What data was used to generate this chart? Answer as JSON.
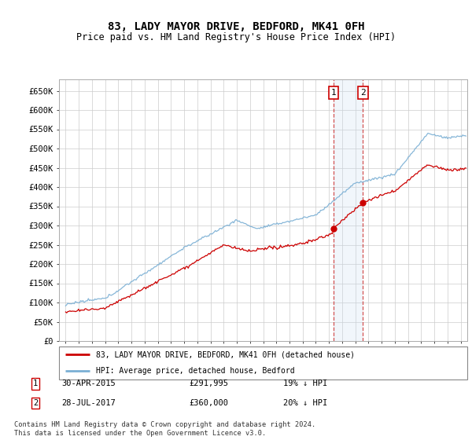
{
  "title": "83, LADY MAYOR DRIVE, BEDFORD, MK41 0FH",
  "subtitle": "Price paid vs. HM Land Registry's House Price Index (HPI)",
  "ylabel_ticks": [
    "£0",
    "£50K",
    "£100K",
    "£150K",
    "£200K",
    "£250K",
    "£300K",
    "£350K",
    "£400K",
    "£450K",
    "£500K",
    "£550K",
    "£600K",
    "£650K"
  ],
  "yticks": [
    0,
    50000,
    100000,
    150000,
    200000,
    250000,
    300000,
    350000,
    400000,
    450000,
    500000,
    550000,
    600000,
    650000
  ],
  "ylim": [
    0,
    680000
  ],
  "xlim_start": 1994.5,
  "xlim_end": 2025.5,
  "sale1_year": 2015.33,
  "sale1_price": 291995,
  "sale1_label": "1",
  "sale1_date": "30-APR-2015",
  "sale1_text": "£291,995",
  "sale1_hpi": "19% ↓ HPI",
  "sale2_year": 2017.58,
  "sale2_price": 360000,
  "sale2_label": "2",
  "sale2_date": "28-JUL-2017",
  "sale2_text": "£360,000",
  "sale2_hpi": "20% ↓ HPI",
  "legend_line1": "83, LADY MAYOR DRIVE, BEDFORD, MK41 0FH (detached house)",
  "legend_line2": "HPI: Average price, detached house, Bedford",
  "footer": "Contains HM Land Registry data © Crown copyright and database right 2024.\nThis data is licensed under the Open Government Licence v3.0.",
  "hpi_color": "#7aafd4",
  "sale_color": "#cc0000",
  "marker_color": "#cc0000",
  "shade_color": "#ddeeff"
}
